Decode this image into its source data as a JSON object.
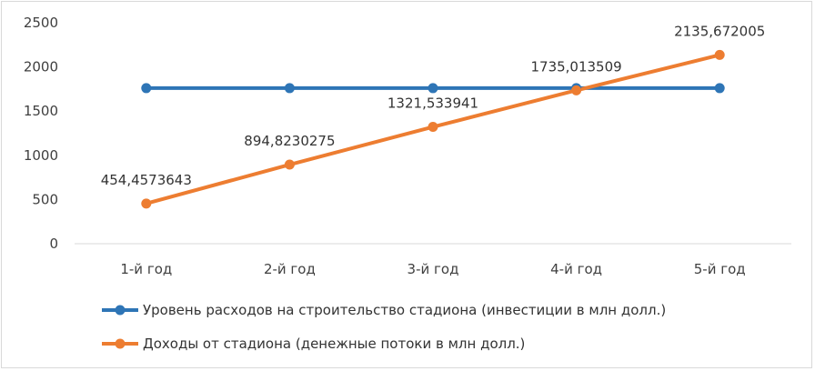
{
  "chart_data": {
    "type": "line",
    "categories": [
      "1-й год",
      "2-й год",
      "3-й год",
      "4-й год",
      "5-й год"
    ],
    "ylim": [
      0,
      2500
    ],
    "yticks": [
      "0",
      "500",
      "1000",
      "1500",
      "2000",
      "2500"
    ],
    "grid": false,
    "legend_position": "bottom",
    "series": [
      {
        "name": "Уровень расходов на строительство стадиона (инвестиции в млн долл.)",
        "color": "#2e75b6",
        "values": [
          1760,
          1760,
          1760,
          1760,
          1760
        ],
        "data_labels": [
          "",
          "",
          "",
          "",
          ""
        ]
      },
      {
        "name": "Доходы от стадиона (денежные потоки в млн долл.)",
        "color": "#ed7d31",
        "values": [
          454.4573643,
          894.8230275,
          1321.533941,
          1735.013509,
          2135.672005
        ],
        "data_labels": [
          "454,4573643",
          "894,8230275",
          "1321,533941",
          "1735,013509",
          "2135,672005"
        ]
      }
    ]
  }
}
